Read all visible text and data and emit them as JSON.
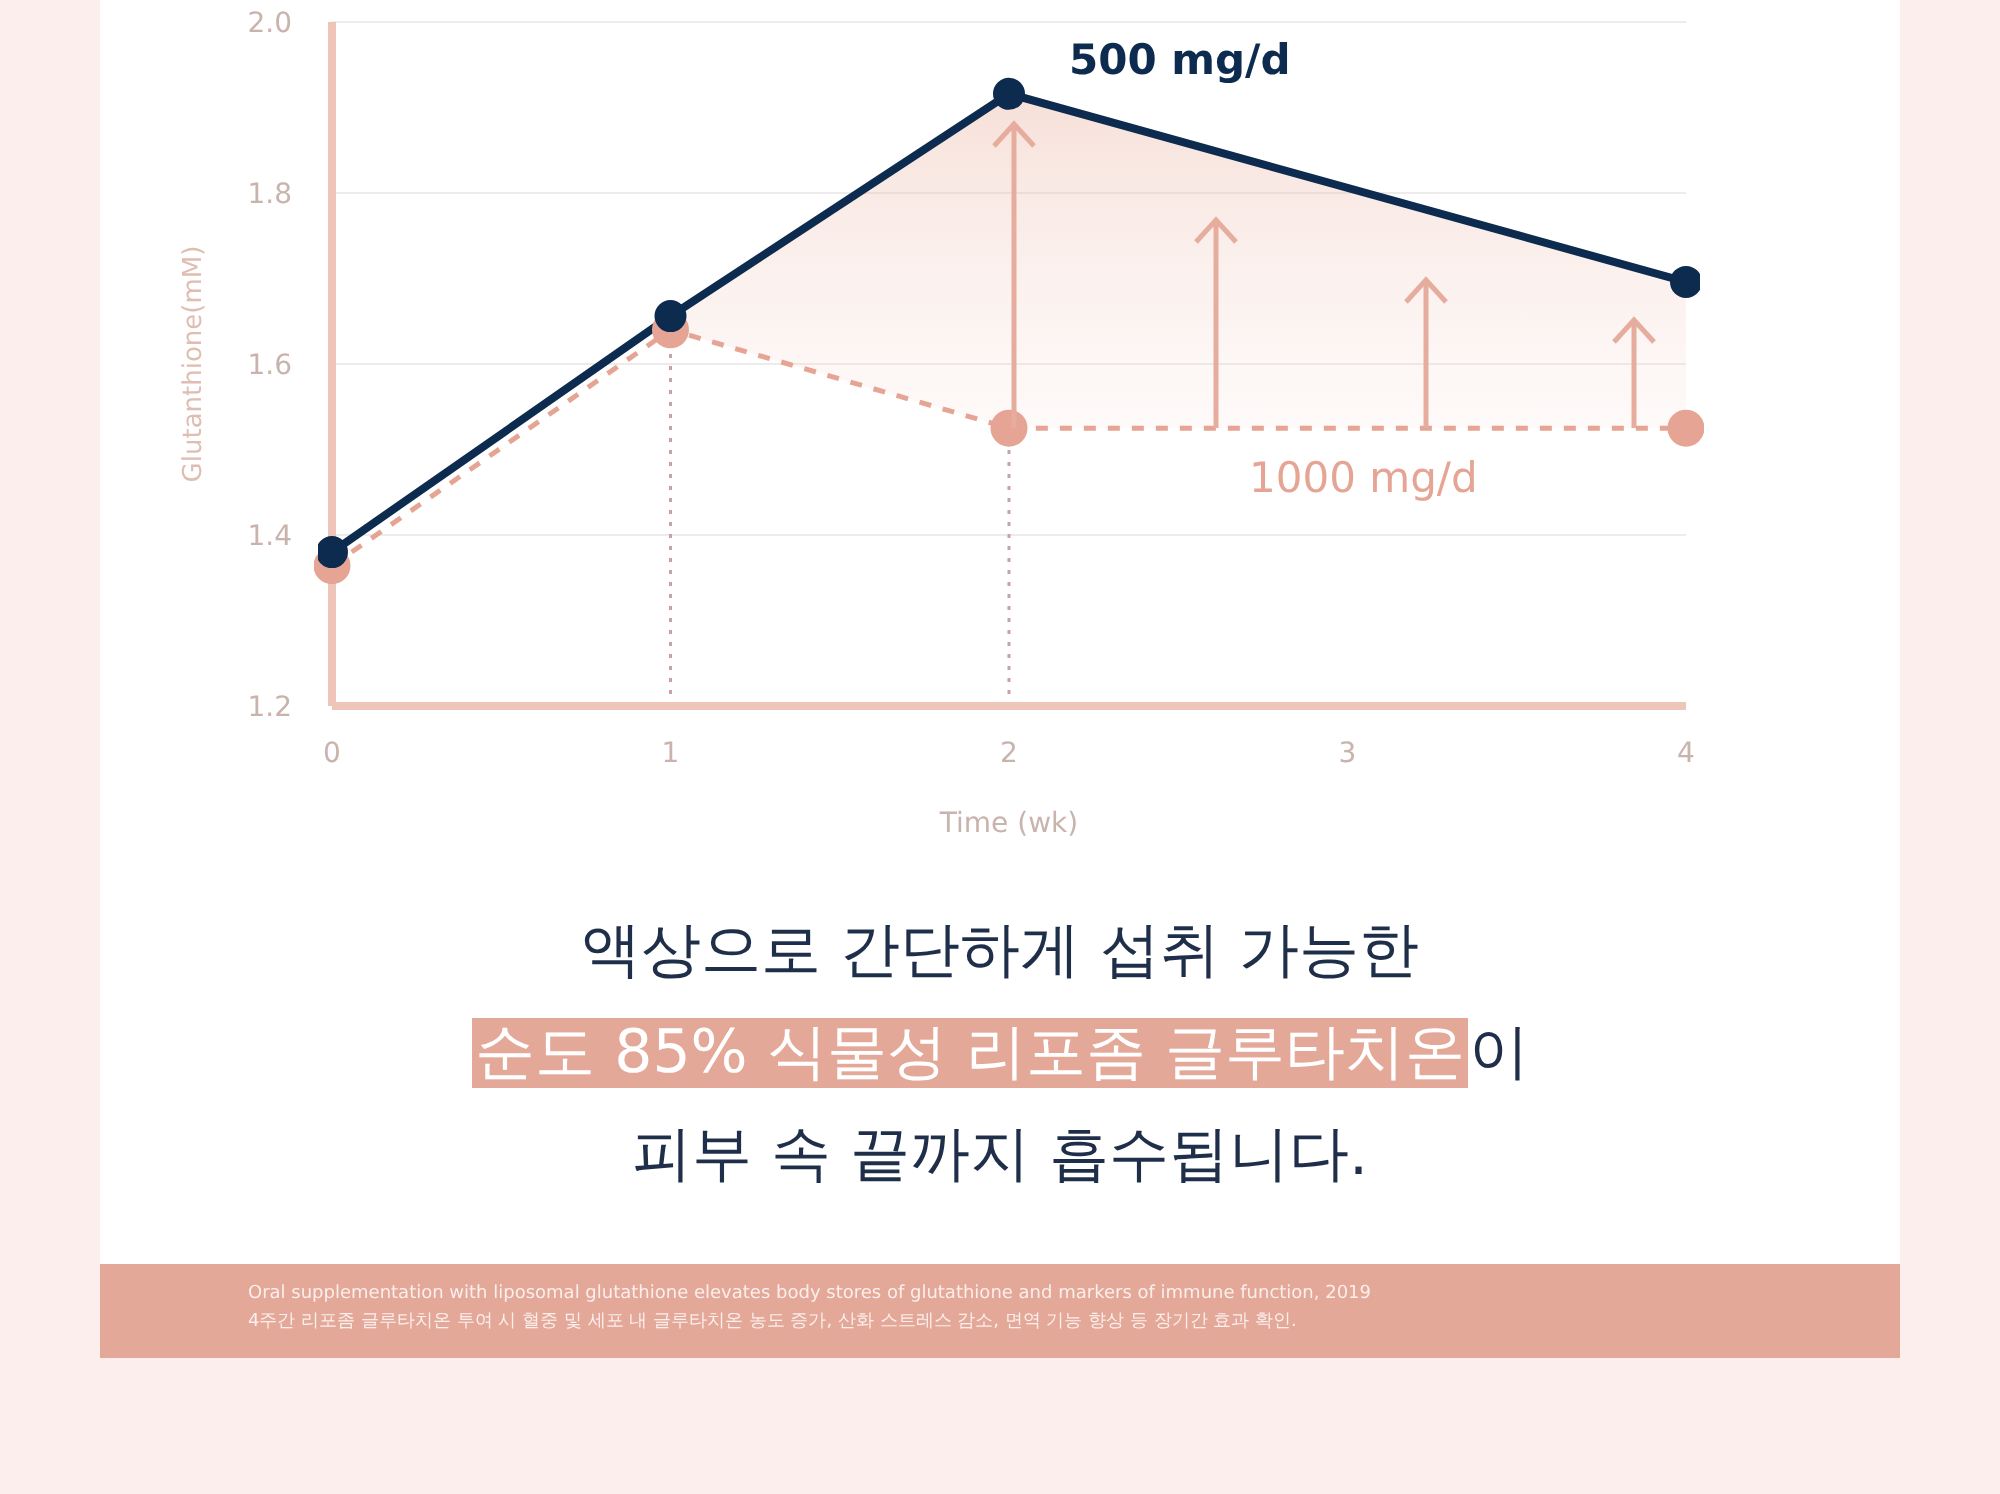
{
  "chart_data": {
    "type": "line",
    "xlabel": "Time (wk)",
    "ylabel": "Glutanthione(mM)",
    "x": [
      0,
      1,
      2,
      4
    ],
    "xlim": [
      0,
      4
    ],
    "xticks": [
      0,
      1,
      2,
      3,
      4
    ],
    "ylim": [
      1.2,
      2.0
    ],
    "yticks": [
      1.2,
      1.4,
      1.6,
      1.8,
      {
        "value": 2,
        "label": "2.0"
      }
    ],
    "grid": "y",
    "marker": "circle",
    "series": [
      {
        "name": "500 mg/d",
        "color": "#0d2b4e",
        "values": [
          1.38,
          1.656,
          1.916,
          1.696
        ],
        "line_style": "solid",
        "lower": [
          null,
          1.64,
          1.525,
          1.525
        ],
        "upper": [
          null,
          1.656,
          1.916,
          1.696
        ]
      },
      {
        "name": "1000 mg/d",
        "color": "#e6a594",
        "values": [
          1.364,
          1.64,
          1.525,
          1.525
        ],
        "line_style": "dashed"
      }
    ],
    "ref_lines": [
      {
        "axis": "x",
        "value": 1,
        "color": "#c9a3a3",
        "line_style": "dotted"
      },
      {
        "axis": "x",
        "value": 2,
        "color": "#c9a3a3",
        "line_style": "dotted"
      }
    ],
    "annotations": [
      "액상으로 간단하게 섭취 가능한",
      "순도 85% 식물성 리포좀 글루타치온",
      "이",
      "피부 속 끝까지 흡수됩니다.",
      "Oral supplementation with liposomal glutathione elevates body stores of glutathione and markers of immune function, 2019",
      "4주간 리포좀 글루타치온 투여 시 혈중 및 세포 내 글루타치온 농도 증가, 산화 스트레스 감소, 면역 기능 향상 등 장기간 효과 확인."
    ]
  }
}
